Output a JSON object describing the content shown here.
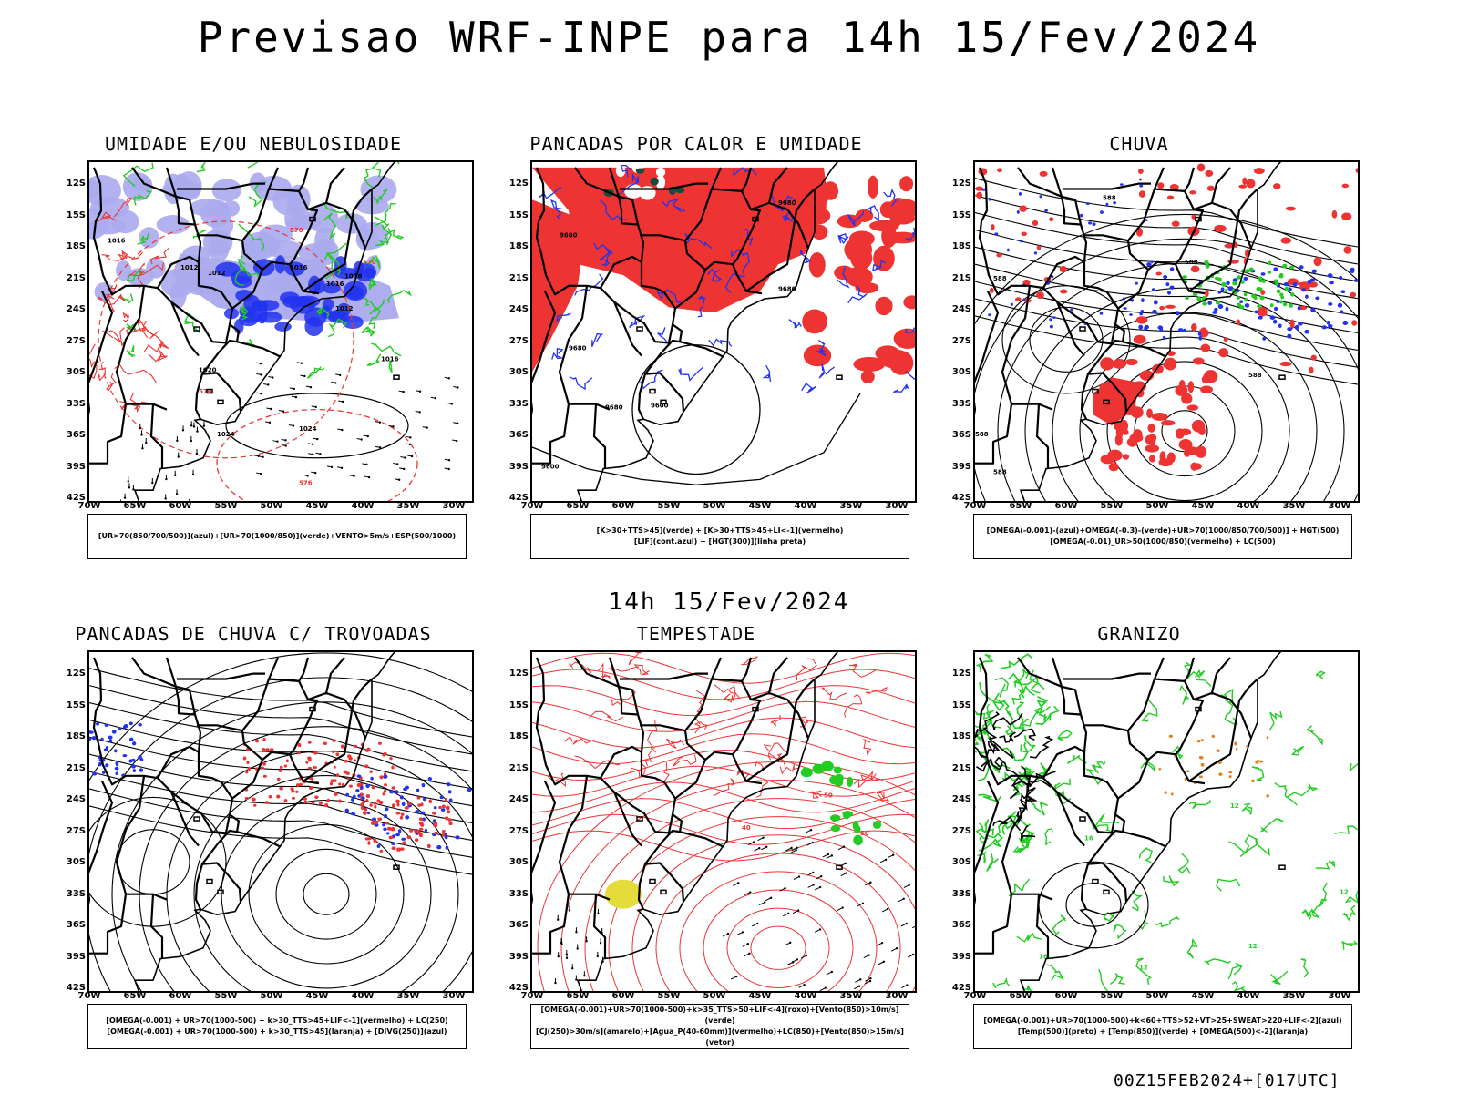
{
  "title": "Previsao WRF-INPE  para 14h 15/Fev/2024",
  "subtitle": "14h 15/Fev/2024",
  "footer": "00Z15FEB2024+[017UTC]",
  "colors": {
    "red": "#ee3333",
    "blue": "#2233ee",
    "green": "#22cc22",
    "lavender": "#aaaaee",
    "darkgreen": "#1a4a3a",
    "yellow": "#e3dc3a",
    "orange": "#e08020",
    "black": "#000000"
  },
  "axes": {
    "lat_labels": [
      "12S",
      "15S",
      "18S",
      "21S",
      "24S",
      "27S",
      "30S",
      "33S",
      "36S",
      "39S",
      "42S"
    ],
    "lon_labels": [
      "70W",
      "65W",
      "60W",
      "55W",
      "50W",
      "45W",
      "40W",
      "35W",
      "30W"
    ]
  },
  "panels": [
    {
      "title": "UMIDADE E/OU NEBULOSIDADE",
      "legend": [
        "[UR>70(850/700/500)](azul)+[UR>70(1000/850)](verde)+VENTO>5m/s+ESP(500/1000)"
      ],
      "contour_labels": [
        "1016",
        "1012",
        "1012",
        "1016",
        "1016",
        "1016",
        "1012",
        "1016",
        "1020",
        "1024",
        "1024",
        "576",
        "570",
        "570",
        "576"
      ]
    },
    {
      "title": "PANCADAS POR CALOR E UMIDADE",
      "legend": [
        "[K>30+TTS>45](verde) + [K>30+TTS>45+LI<-1](vermelho)",
        "[LIF](cont.azul) + [HGT(300)](linha preta)"
      ],
      "contour_labels": [
        "9680",
        "9680",
        "9680",
        "9680",
        "9600",
        "9600",
        "9680"
      ]
    },
    {
      "title": "CHUVA",
      "legend": [
        "[OMEGA(-0.001)-(azul)+OMEGA(-0.3)-(verde)+UR>70(1000/850/700/500)] + HGT(500)",
        "[OMEGA(-0.01)_UR>50(1000/850)(vermelho) + LC(500)"
      ],
      "contour_labels": [
        "588",
        "588",
        "588",
        "588",
        "588",
        "588"
      ]
    },
    {
      "title": "PANCADAS DE CHUVA C/ TROVOADAS",
      "legend": [
        "[OMEGA(-0.001) + UR>70(1000-500) + k>30_TTS>45+LIF<-1](vermelho) + LC(250)",
        "[OMEGA(-0.001) + UR>70(1000-500) + k>30_TTS>45](laranja) + [DIVG(250)](azul)"
      ],
      "contour_labels": []
    },
    {
      "title": "TEMPESTADE",
      "legend": [
        "[OMEGA(-0.001)+UR>70(1000-500)+k>35_TTS>50+LIF<-4](roxo)+[Vento(850)>10m/s](verde)",
        "[CJ(250)>30m/s](amarelo)+[Agua_P(40-60mm)](vermelho)+LC(850)+[Vento(850)>15m/s](vetor)"
      ],
      "contour_labels": [
        "50",
        "50",
        "40"
      ]
    },
    {
      "title": "GRANIZO",
      "legend": [
        "[OMEGA(-0.001)+UR>70(1000-500)+k<60+TTS>52+VT>25+SWEAT>220+LIF<-2](azul)",
        "[Temp(500)](preto) + [Temp(850)](verde) + [OMEGA(500)<-2](laranja)"
      ],
      "contour_labels": [
        "12",
        "16",
        "12",
        "12",
        "16",
        "12"
      ]
    }
  ]
}
